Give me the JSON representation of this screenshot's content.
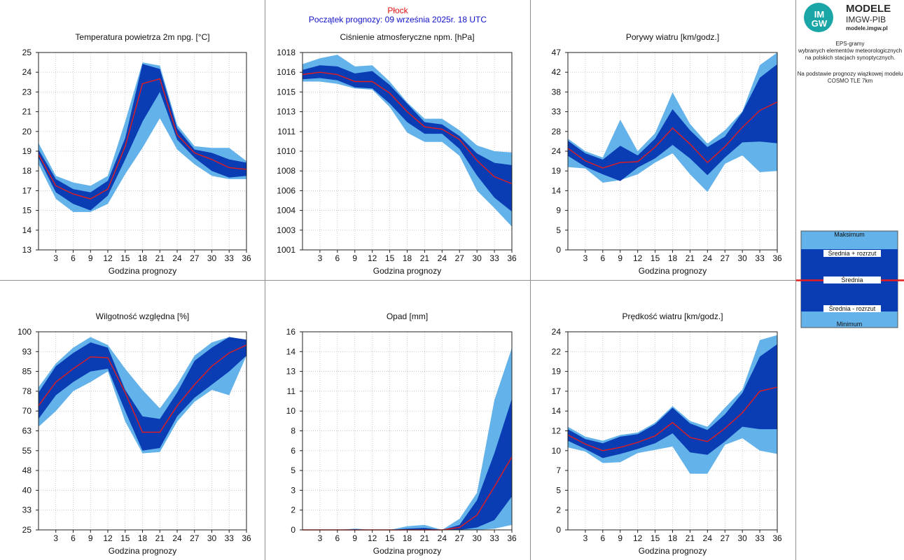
{
  "header": {
    "station": "Płock",
    "forecast_start": "Początek prognozy: 09 września 2025r. 18 UTC",
    "station_color": "#e01010",
    "forecast_color": "#1010c8"
  },
  "sidebar": {
    "logo_text": "IM GW",
    "brand_title": "MODELE",
    "brand_subtitle": "IMGW-PIB",
    "brand_url": "modele.imgw.pl",
    "desc_lines": [
      "EPS-gramy",
      "wybranych elementów meteorologicznych",
      "na polskich stacjach  synoptycznych."
    ],
    "model_lines": [
      "Na podstawie prognozy wiązkowej modelu",
      "COSMO TLE 7km"
    ]
  },
  "legend": {
    "items": [
      "Maksimum",
      "Średnia + rozrzut",
      "Średnia",
      "Średnia - rozrzut",
      "Minimum"
    ]
  },
  "colors": {
    "light": "#64b2ea",
    "dark": "#0a3cb4",
    "mean": "#e41c1c",
    "grid": "#b4b4b4",
    "border": "#909090"
  },
  "chart_data": [
    {
      "type": "area",
      "title": "Temperatura powietrza 2m npg. [°C]",
      "xlabel": "Godzina prognozy",
      "xticks": [
        3,
        6,
        9,
        12,
        15,
        18,
        21,
        24,
        27,
        30,
        33,
        36
      ],
      "xlim": [
        0,
        36
      ],
      "ylim": [
        13,
        25
      ],
      "yticks": [
        "13",
        "14",
        "15",
        "17",
        "18",
        "19",
        "20",
        "21",
        "23",
        "24",
        "25"
      ],
      "x": [
        0,
        3,
        6,
        9,
        12,
        15,
        18,
        21,
        24,
        27,
        30,
        33,
        36
      ],
      "max": [
        19.5,
        17.5,
        17.1,
        16.9,
        17.5,
        20.8,
        24.4,
        24.2,
        20.6,
        19.3,
        19.2,
        19.2,
        18.4
      ],
      "mean_plus": [
        19.1,
        17.3,
        16.7,
        16.5,
        17.2,
        19.8,
        24.3,
        24.0,
        20.4,
        19.1,
        18.9,
        18.5,
        18.3
      ],
      "mean": [
        18.8,
        16.9,
        16.4,
        16.1,
        16.7,
        19.3,
        23.1,
        23.4,
        20.0,
        18.9,
        18.5,
        18.0,
        17.9
      ],
      "mean_minus": [
        18.6,
        16.5,
        15.8,
        15.4,
        16.3,
        18.5,
        20.8,
        22.6,
        19.7,
        18.6,
        17.8,
        17.4,
        17.5
      ],
      "min": [
        18.2,
        16.1,
        15.3,
        15.3,
        15.8,
        17.6,
        19.2,
        21.0,
        19.1,
        18.2,
        17.5,
        17.3,
        17.3
      ]
    },
    {
      "type": "area",
      "title": "Ciśnienie atmosferyczne npm. [hPa]",
      "xlabel": "Godzina prognozy",
      "xticks": [
        3,
        6,
        9,
        12,
        15,
        18,
        21,
        24,
        27,
        30,
        33,
        36
      ],
      "xlim": [
        0,
        36
      ],
      "ylim": [
        1001,
        1018
      ],
      "yticks": [
        "1001",
        "1003",
        "1004",
        "1006",
        "1008",
        "1010",
        "1011",
        "1013",
        "1015",
        "1016",
        "1018"
      ],
      "x": [
        0,
        3,
        6,
        9,
        12,
        15,
        18,
        21,
        24,
        27,
        30,
        33,
        36
      ],
      "max": [
        1017.0,
        1017.5,
        1017.8,
        1016.8,
        1016.9,
        1015.5,
        1013.7,
        1012.3,
        1012.3,
        1011.3,
        1010.0,
        1009.5,
        1009.4
      ],
      "mean_plus": [
        1016.5,
        1016.9,
        1016.8,
        1016.2,
        1016.4,
        1015.2,
        1013.6,
        1012.0,
        1011.8,
        1010.8,
        1009.3,
        1008.5,
        1008.3
      ],
      "mean": [
        1016.1,
        1016.3,
        1016.1,
        1015.5,
        1015.5,
        1014.5,
        1012.9,
        1011.6,
        1011.4,
        1010.5,
        1008.7,
        1007.3,
        1006.7
      ],
      "mean_minus": [
        1015.7,
        1015.8,
        1015.6,
        1015.0,
        1014.9,
        1013.6,
        1012.0,
        1011.0,
        1011.0,
        1009.7,
        1007.4,
        1005.5,
        1004.3
      ],
      "min": [
        1015.5,
        1015.5,
        1015.3,
        1014.9,
        1014.8,
        1013.3,
        1011.1,
        1010.3,
        1010.3,
        1009.1,
        1006.1,
        1004.6,
        1003.0
      ]
    },
    {
      "type": "area",
      "title": "Porywy wiatru [km/godz.]",
      "xlabel": "Godzina prognozy",
      "xticks": [
        3,
        6,
        9,
        12,
        15,
        18,
        21,
        24,
        27,
        30,
        33,
        36
      ],
      "xlim": [
        0,
        36
      ],
      "ylim": [
        0,
        47
      ],
      "yticks": [
        "0",
        "5",
        "9",
        "14",
        "19",
        "24",
        "28",
        "33",
        "38",
        "42",
        "47"
      ],
      "x": [
        0,
        3,
        6,
        9,
        12,
        15,
        18,
        21,
        24,
        27,
        30,
        33,
        36
      ],
      "max": [
        26.5,
        23.5,
        22.0,
        31.0,
        23.5,
        27.8,
        37.5,
        30.0,
        25.3,
        28.5,
        33.0,
        44.0,
        47.0
      ],
      "mean_plus": [
        26.0,
        23.0,
        21.5,
        24.8,
        22.5,
        26.5,
        33.5,
        28.5,
        24.5,
        27.0,
        32.8,
        41.0,
        44.2
      ],
      "mean": [
        24.2,
        21.2,
        19.5,
        20.8,
        21.0,
        24.5,
        29.0,
        25.2,
        20.8,
        24.6,
        29.2,
        33.2,
        35.2
      ],
      "mean_minus": [
        22.4,
        19.8,
        18.0,
        16.4,
        19.6,
        21.8,
        25.0,
        21.8,
        17.8,
        22.0,
        25.6,
        25.8,
        25.4
      ],
      "min": [
        19.7,
        19.4,
        16.0,
        16.6,
        18.0,
        20.8,
        23.0,
        18.0,
        13.8,
        20.5,
        22.5,
        18.5,
        18.8
      ]
    },
    {
      "type": "area",
      "title": "Wilgotność względna [%]",
      "xlabel": "Godzina prognozy",
      "xticks": [
        3,
        6,
        9,
        12,
        15,
        18,
        21,
        24,
        27,
        30,
        33,
        36
      ],
      "xlim": [
        0,
        36
      ],
      "ylim": [
        25,
        100
      ],
      "yticks": [
        "25",
        "33",
        "40",
        "48",
        "55",
        "63",
        "70",
        "78",
        "85",
        "93",
        "100"
      ],
      "x": [
        0,
        3,
        6,
        9,
        12,
        15,
        18,
        21,
        24,
        27,
        30,
        33,
        36
      ],
      "max": [
        79.0,
        88.0,
        94.0,
        98.0,
        95.0,
        86.0,
        78.0,
        71.0,
        80.0,
        91.0,
        96.0,
        98.0,
        97.0
      ],
      "mean_plus": [
        77.0,
        87.0,
        92.0,
        96.0,
        94.0,
        78.0,
        68.0,
        67.0,
        77.0,
        89.0,
        94.0,
        98.0,
        97.0
      ],
      "mean": [
        72.0,
        81.0,
        86.0,
        90.5,
        90.2,
        77.0,
        62.0,
        62.0,
        72.0,
        80.0,
        87.0,
        92.0,
        95.0
      ],
      "mean_minus": [
        67.0,
        76.0,
        81.0,
        85.0,
        86.0,
        70.0,
        55.0,
        56.0,
        68.0,
        75.0,
        80.0,
        85.0,
        91.0
      ],
      "min": [
        64.0,
        70.0,
        77.5,
        81.0,
        85.0,
        66.0,
        54.0,
        54.5,
        66.0,
        73.5,
        78.0,
        76.0,
        91.0
      ]
    },
    {
      "type": "area",
      "title": "Opad [mm]",
      "xlabel": "Godzina prognozy",
      "xticks": [
        3,
        6,
        9,
        12,
        15,
        18,
        21,
        24,
        27,
        30,
        33,
        36
      ],
      "xlim": [
        0,
        36
      ],
      "ylim": [
        0,
        16
      ],
      "yticks": [
        "0",
        "2",
        "3",
        "5",
        "6",
        "8",
        "10",
        "11",
        "13",
        "14",
        "16"
      ],
      "x": [
        0,
        3,
        6,
        9,
        12,
        15,
        18,
        21,
        24,
        27,
        30,
        33,
        36
      ],
      "max": [
        0.0,
        0.0,
        0.0,
        0.1,
        0.0,
        0.0,
        0.3,
        0.4,
        0.0,
        0.9,
        3.0,
        10.5,
        14.7
      ],
      "mean_plus": [
        0.0,
        0.0,
        0.0,
        0.05,
        0.0,
        0.0,
        0.1,
        0.15,
        0.0,
        0.4,
        2.4,
        6.2,
        10.6
      ],
      "mean": [
        0.0,
        0.0,
        0.0,
        0.0,
        0.0,
        0.0,
        0.0,
        0.0,
        0.0,
        0.2,
        1.2,
        3.5,
        5.9
      ],
      "mean_minus": [
        0.0,
        0.0,
        0.0,
        0.0,
        0.0,
        0.0,
        0.0,
        0.0,
        0.0,
        0.0,
        0.2,
        0.8,
        2.7
      ],
      "min": [
        0.0,
        0.0,
        0.0,
        0.0,
        0.0,
        0.0,
        0.0,
        0.0,
        0.0,
        0.0,
        0.0,
        0.1,
        0.4
      ]
    },
    {
      "type": "area",
      "title": "Prędkość wiatru [km/godz.]",
      "xlabel": "Godzina prognozy",
      "xticks": [
        3,
        6,
        9,
        12,
        15,
        18,
        21,
        24,
        27,
        30,
        33,
        36
      ],
      "xlim": [
        0,
        36
      ],
      "ylim": [
        0,
        24
      ],
      "yticks": [
        "0",
        "2",
        "5",
        "7",
        "10",
        "12",
        "14",
        "17",
        "19",
        "22",
        "24"
      ],
      "x": [
        0,
        3,
        6,
        9,
        12,
        15,
        18,
        21,
        24,
        27,
        30,
        33,
        36
      ],
      "max": [
        12.5,
        11.3,
        10.8,
        11.5,
        11.8,
        13.0,
        15.0,
        13.2,
        12.5,
        14.8,
        17.0,
        23.0,
        23.6
      ],
      "mean_plus": [
        12.2,
        11.0,
        10.5,
        11.3,
        11.6,
        12.8,
        14.8,
        12.9,
        12.1,
        14.0,
        16.6,
        21.0,
        22.5
      ],
      "mean": [
        11.5,
        10.4,
        9.6,
        10.0,
        10.6,
        11.4,
        13.0,
        11.2,
        10.7,
        12.3,
        14.2,
        16.8,
        17.3
      ],
      "mean_minus": [
        10.8,
        9.8,
        8.7,
        9.2,
        9.8,
        10.5,
        11.7,
        9.4,
        9.1,
        10.7,
        12.5,
        12.2,
        12.2
      ],
      "min": [
        10.0,
        9.5,
        8.1,
        8.2,
        9.3,
        9.7,
        10.1,
        6.8,
        6.8,
        10.3,
        11.1,
        9.6,
        9.2
      ]
    }
  ]
}
